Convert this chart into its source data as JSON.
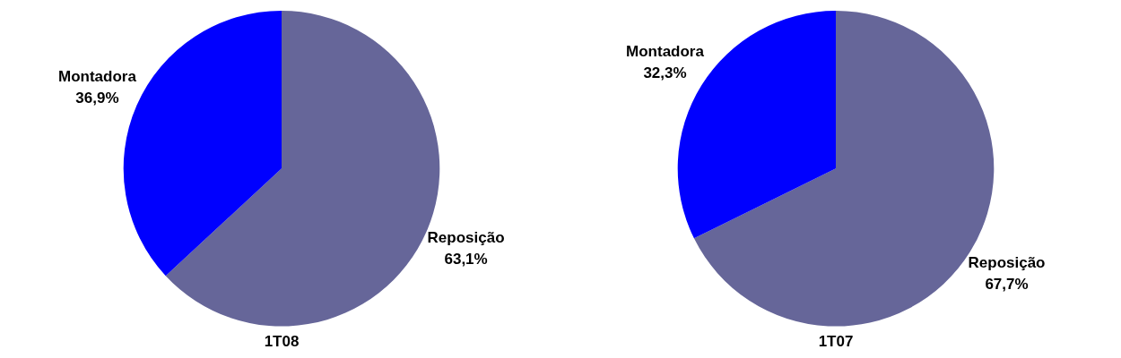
{
  "chart_data": [
    {
      "type": "pie",
      "title": "1T08",
      "categories": [
        "Reposição",
        "Montadora"
      ],
      "values": [
        63.1,
        36.9
      ],
      "colors": [
        "#666699",
        "#0000ff"
      ],
      "value_labels": [
        "63,1%",
        "36,9%"
      ],
      "legend": false
    },
    {
      "type": "pie",
      "title": "1T07",
      "categories": [
        "Reposição",
        "Montadora"
      ],
      "values": [
        67.7,
        32.3
      ],
      "colors": [
        "#666699",
        "#0000ff"
      ],
      "value_labels": [
        "67,7%",
        "32,3%"
      ],
      "legend": false
    }
  ]
}
